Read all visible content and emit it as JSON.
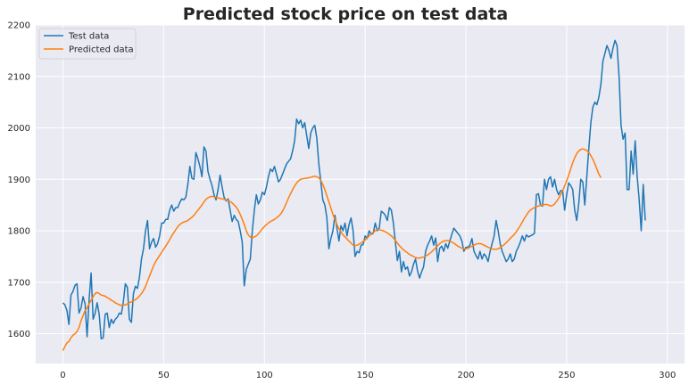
{
  "chart_data": {
    "type": "line",
    "title": "Predicted stock price on test data",
    "xlabel": "",
    "ylabel": "",
    "xlim": [
      -13.5,
      308.5
    ],
    "ylim": [
      1542,
      2200
    ],
    "x_ticks": [
      0,
      50,
      100,
      150,
      200,
      250,
      300
    ],
    "y_ticks": [
      1600,
      1700,
      1800,
      1900,
      2000,
      2100,
      2200
    ],
    "grid": true,
    "legend": "top-left",
    "colors": {
      "background": "#eaeaf2",
      "grid": "#ffffff",
      "test": "#1f77b4",
      "predicted": "#ff7f0e"
    },
    "series": [
      {
        "name": "Test data",
        "values": [
          1660,
          1656,
          1645,
          1618,
          1675,
          1682,
          1694,
          1697,
          1640,
          1650,
          1672,
          1658,
          1594,
          1666,
          1718,
          1628,
          1640,
          1660,
          1638,
          1590,
          1592,
          1638,
          1640,
          1612,
          1628,
          1620,
          1628,
          1632,
          1640,
          1638,
          1662,
          1697,
          1690,
          1628,
          1622,
          1678,
          1692,
          1688,
          1710,
          1745,
          1765,
          1800,
          1820,
          1765,
          1778,
          1785,
          1768,
          1775,
          1790,
          1815,
          1815,
          1822,
          1822,
          1840,
          1850,
          1838,
          1845,
          1845,
          1855,
          1862,
          1860,
          1865,
          1890,
          1925,
          1902,
          1900,
          1952,
          1940,
          1925,
          1905,
          1963,
          1955,
          1915,
          1900,
          1888,
          1870,
          1860,
          1880,
          1908,
          1885,
          1865,
          1858,
          1862,
          1840,
          1818,
          1830,
          1822,
          1818,
          1800,
          1778,
          1693,
          1725,
          1735,
          1745,
          1800,
          1840,
          1870,
          1852,
          1860,
          1875,
          1870,
          1885,
          1905,
          1920,
          1915,
          1925,
          1910,
          1895,
          1900,
          1910,
          1920,
          1930,
          1935,
          1940,
          1955,
          1975,
          2017,
          2008,
          2015,
          2000,
          2010,
          1985,
          1960,
          1990,
          2000,
          2005,
          1980,
          1930,
          1895,
          1860,
          1850,
          1825,
          1765,
          1785,
          1800,
          1830,
          1805,
          1780,
          1810,
          1800,
          1815,
          1790,
          1812,
          1825,
          1800,
          1750,
          1760,
          1757,
          1772,
          1773,
          1790,
          1785,
          1800,
          1793,
          1795,
          1815,
          1800,
          1805,
          1838,
          1835,
          1830,
          1820,
          1845,
          1840,
          1815,
          1778,
          1742,
          1760,
          1720,
          1740,
          1725,
          1730,
          1712,
          1720,
          1735,
          1745,
          1722,
          1708,
          1720,
          1730,
          1760,
          1772,
          1780,
          1790,
          1772,
          1786,
          1740,
          1766,
          1770,
          1760,
          1775,
          1766,
          1780,
          1793,
          1805,
          1800,
          1795,
          1790,
          1780,
          1760,
          1768,
          1768,
          1772,
          1785,
          1760,
          1752,
          1745,
          1760,
          1745,
          1755,
          1750,
          1740,
          1760,
          1775,
          1790,
          1820,
          1800,
          1775,
          1760,
          1750,
          1740,
          1745,
          1755,
          1740,
          1745,
          1760,
          1768,
          1778,
          1790,
          1780,
          1792,
          1788,
          1790,
          1792,
          1795,
          1870,
          1872,
          1850,
          1848,
          1900,
          1880,
          1900,
          1905,
          1885,
          1900,
          1880,
          1870,
          1878,
          1878,
          1840,
          1870,
          1893,
          1888,
          1880,
          1840,
          1820,
          1853,
          1900,
          1895,
          1850,
          1905,
          1960,
          2010,
          2040,
          2050,
          2045,
          2060,
          2085,
          2130,
          2145,
          2160,
          2150,
          2135,
          2155,
          2170,
          2160,
          2100,
          2005,
          1978,
          1990,
          1880,
          1880,
          1955,
          1910,
          1975,
          1905,
          1860,
          1800,
          1890,
          1820
        ]
      },
      {
        "name": "Predicted data",
        "values": [
          1567,
          1575,
          1582,
          1585,
          1592,
          1597,
          1600,
          1604,
          1612,
          1625,
          1635,
          1645,
          1650,
          1658,
          1665,
          1672,
          1678,
          1680,
          1678,
          1675,
          1674,
          1673,
          1670,
          1668,
          1665,
          1663,
          1660,
          1658,
          1656,
          1655,
          1655,
          1656,
          1658,
          1660,
          1662,
          1664,
          1666,
          1669,
          1673,
          1678,
          1684,
          1692,
          1702,
          1712,
          1722,
          1732,
          1740,
          1746,
          1752,
          1758,
          1764,
          1770,
          1776,
          1783,
          1790,
          1796,
          1802,
          1808,
          1812,
          1815,
          1817,
          1818,
          1820,
          1823,
          1826,
          1830,
          1835,
          1840,
          1845,
          1850,
          1856,
          1861,
          1864,
          1866,
          1867,
          1866,
          1865,
          1864,
          1863,
          1862,
          1861,
          1860,
          1859,
          1857,
          1854,
          1850,
          1846,
          1840,
          1832,
          1822,
          1812,
          1800,
          1792,
          1788,
          1786,
          1788,
          1790,
          1794,
          1799,
          1804,
          1808,
          1812,
          1815,
          1818,
          1820,
          1822,
          1825,
          1828,
          1832,
          1838,
          1846,
          1855,
          1864,
          1872,
          1880,
          1887,
          1893,
          1897,
          1900,
          1901,
          1902,
          1902,
          1903,
          1904,
          1905,
          1906,
          1905,
          1903,
          1898,
          1890,
          1880,
          1868,
          1856,
          1844,
          1832,
          1822,
          1812,
          1804,
          1798,
          1792,
          1788,
          1784,
          1780,
          1776,
          1772,
          1771,
          1772,
          1774,
          1776,
          1779,
          1782,
          1786,
          1790,
          1794,
          1797,
          1800,
          1802,
          1802,
          1801,
          1800,
          1798,
          1796,
          1793,
          1790,
          1786,
          1781,
          1776,
          1771,
          1767,
          1763,
          1760,
          1757,
          1754,
          1752,
          1750,
          1748,
          1747,
          1747,
          1748,
          1749,
          1751,
          1753,
          1756,
          1759,
          1763,
          1767,
          1771,
          1775,
          1778,
          1780,
          1781,
          1781,
          1780,
          1778,
          1776,
          1773,
          1770,
          1768,
          1766,
          1765,
          1765,
          1766,
          1768,
          1770,
          1772,
          1774,
          1775,
          1775,
          1774,
          1772,
          1770,
          1768,
          1766,
          1765,
          1764,
          1764,
          1765,
          1767,
          1770,
          1773,
          1777,
          1781,
          1785,
          1789,
          1793,
          1798,
          1804,
          1810,
          1817,
          1824,
          1830,
          1836,
          1840,
          1843,
          1845,
          1847,
          1848,
          1849,
          1850,
          1851,
          1851,
          1850,
          1848,
          1849,
          1852,
          1857,
          1863,
          1870,
          1878,
          1887,
          1897,
          1908,
          1920,
          1932,
          1942,
          1950,
          1955,
          1958,
          1959,
          1958,
          1956,
          1952,
          1946,
          1939,
          1930,
          1920,
          1910,
          1903
        ]
      }
    ]
  }
}
